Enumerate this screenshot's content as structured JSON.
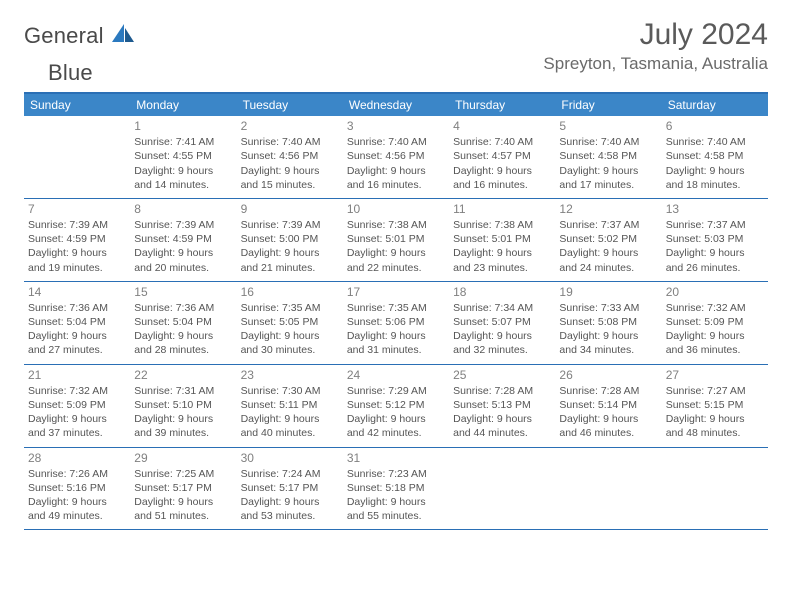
{
  "brand": {
    "part1": "General",
    "part2": "Blue"
  },
  "title": "July 2024",
  "location": "Spreyton, Tasmania, Australia",
  "colors": {
    "header_bg": "#3b86c8",
    "border": "#2a6fb5",
    "text": "#555555",
    "muted": "#808080",
    "brand_blue": "#2b79bf"
  },
  "day_headers": [
    "Sunday",
    "Monday",
    "Tuesday",
    "Wednesday",
    "Thursday",
    "Friday",
    "Saturday"
  ],
  "weeks": [
    [
      {
        "num": "",
        "lines": [
          "",
          "",
          "",
          ""
        ]
      },
      {
        "num": "1",
        "lines": [
          "Sunrise: 7:41 AM",
          "Sunset: 4:55 PM",
          "Daylight: 9 hours",
          "and 14 minutes."
        ]
      },
      {
        "num": "2",
        "lines": [
          "Sunrise: 7:40 AM",
          "Sunset: 4:56 PM",
          "Daylight: 9 hours",
          "and 15 minutes."
        ]
      },
      {
        "num": "3",
        "lines": [
          "Sunrise: 7:40 AM",
          "Sunset: 4:56 PM",
          "Daylight: 9 hours",
          "and 16 minutes."
        ]
      },
      {
        "num": "4",
        "lines": [
          "Sunrise: 7:40 AM",
          "Sunset: 4:57 PM",
          "Daylight: 9 hours",
          "and 16 minutes."
        ]
      },
      {
        "num": "5",
        "lines": [
          "Sunrise: 7:40 AM",
          "Sunset: 4:58 PM",
          "Daylight: 9 hours",
          "and 17 minutes."
        ]
      },
      {
        "num": "6",
        "lines": [
          "Sunrise: 7:40 AM",
          "Sunset: 4:58 PM",
          "Daylight: 9 hours",
          "and 18 minutes."
        ]
      }
    ],
    [
      {
        "num": "7",
        "lines": [
          "Sunrise: 7:39 AM",
          "Sunset: 4:59 PM",
          "Daylight: 9 hours",
          "and 19 minutes."
        ]
      },
      {
        "num": "8",
        "lines": [
          "Sunrise: 7:39 AM",
          "Sunset: 4:59 PM",
          "Daylight: 9 hours",
          "and 20 minutes."
        ]
      },
      {
        "num": "9",
        "lines": [
          "Sunrise: 7:39 AM",
          "Sunset: 5:00 PM",
          "Daylight: 9 hours",
          "and 21 minutes."
        ]
      },
      {
        "num": "10",
        "lines": [
          "Sunrise: 7:38 AM",
          "Sunset: 5:01 PM",
          "Daylight: 9 hours",
          "and 22 minutes."
        ]
      },
      {
        "num": "11",
        "lines": [
          "Sunrise: 7:38 AM",
          "Sunset: 5:01 PM",
          "Daylight: 9 hours",
          "and 23 minutes."
        ]
      },
      {
        "num": "12",
        "lines": [
          "Sunrise: 7:37 AM",
          "Sunset: 5:02 PM",
          "Daylight: 9 hours",
          "and 24 minutes."
        ]
      },
      {
        "num": "13",
        "lines": [
          "Sunrise: 7:37 AM",
          "Sunset: 5:03 PM",
          "Daylight: 9 hours",
          "and 26 minutes."
        ]
      }
    ],
    [
      {
        "num": "14",
        "lines": [
          "Sunrise: 7:36 AM",
          "Sunset: 5:04 PM",
          "Daylight: 9 hours",
          "and 27 minutes."
        ]
      },
      {
        "num": "15",
        "lines": [
          "Sunrise: 7:36 AM",
          "Sunset: 5:04 PM",
          "Daylight: 9 hours",
          "and 28 minutes."
        ]
      },
      {
        "num": "16",
        "lines": [
          "Sunrise: 7:35 AM",
          "Sunset: 5:05 PM",
          "Daylight: 9 hours",
          "and 30 minutes."
        ]
      },
      {
        "num": "17",
        "lines": [
          "Sunrise: 7:35 AM",
          "Sunset: 5:06 PM",
          "Daylight: 9 hours",
          "and 31 minutes."
        ]
      },
      {
        "num": "18",
        "lines": [
          "Sunrise: 7:34 AM",
          "Sunset: 5:07 PM",
          "Daylight: 9 hours",
          "and 32 minutes."
        ]
      },
      {
        "num": "19",
        "lines": [
          "Sunrise: 7:33 AM",
          "Sunset: 5:08 PM",
          "Daylight: 9 hours",
          "and 34 minutes."
        ]
      },
      {
        "num": "20",
        "lines": [
          "Sunrise: 7:32 AM",
          "Sunset: 5:09 PM",
          "Daylight: 9 hours",
          "and 36 minutes."
        ]
      }
    ],
    [
      {
        "num": "21",
        "lines": [
          "Sunrise: 7:32 AM",
          "Sunset: 5:09 PM",
          "Daylight: 9 hours",
          "and 37 minutes."
        ]
      },
      {
        "num": "22",
        "lines": [
          "Sunrise: 7:31 AM",
          "Sunset: 5:10 PM",
          "Daylight: 9 hours",
          "and 39 minutes."
        ]
      },
      {
        "num": "23",
        "lines": [
          "Sunrise: 7:30 AM",
          "Sunset: 5:11 PM",
          "Daylight: 9 hours",
          "and 40 minutes."
        ]
      },
      {
        "num": "24",
        "lines": [
          "Sunrise: 7:29 AM",
          "Sunset: 5:12 PM",
          "Daylight: 9 hours",
          "and 42 minutes."
        ]
      },
      {
        "num": "25",
        "lines": [
          "Sunrise: 7:28 AM",
          "Sunset: 5:13 PM",
          "Daylight: 9 hours",
          "and 44 minutes."
        ]
      },
      {
        "num": "26",
        "lines": [
          "Sunrise: 7:28 AM",
          "Sunset: 5:14 PM",
          "Daylight: 9 hours",
          "and 46 minutes."
        ]
      },
      {
        "num": "27",
        "lines": [
          "Sunrise: 7:27 AM",
          "Sunset: 5:15 PM",
          "Daylight: 9 hours",
          "and 48 minutes."
        ]
      }
    ],
    [
      {
        "num": "28",
        "lines": [
          "Sunrise: 7:26 AM",
          "Sunset: 5:16 PM",
          "Daylight: 9 hours",
          "and 49 minutes."
        ]
      },
      {
        "num": "29",
        "lines": [
          "Sunrise: 7:25 AM",
          "Sunset: 5:17 PM",
          "Daylight: 9 hours",
          "and 51 minutes."
        ]
      },
      {
        "num": "30",
        "lines": [
          "Sunrise: 7:24 AM",
          "Sunset: 5:17 PM",
          "Daylight: 9 hours",
          "and 53 minutes."
        ]
      },
      {
        "num": "31",
        "lines": [
          "Sunrise: 7:23 AM",
          "Sunset: 5:18 PM",
          "Daylight: 9 hours",
          "and 55 minutes."
        ]
      },
      {
        "num": "",
        "lines": [
          "",
          "",
          "",
          ""
        ]
      },
      {
        "num": "",
        "lines": [
          "",
          "",
          "",
          ""
        ]
      },
      {
        "num": "",
        "lines": [
          "",
          "",
          "",
          ""
        ]
      }
    ]
  ]
}
